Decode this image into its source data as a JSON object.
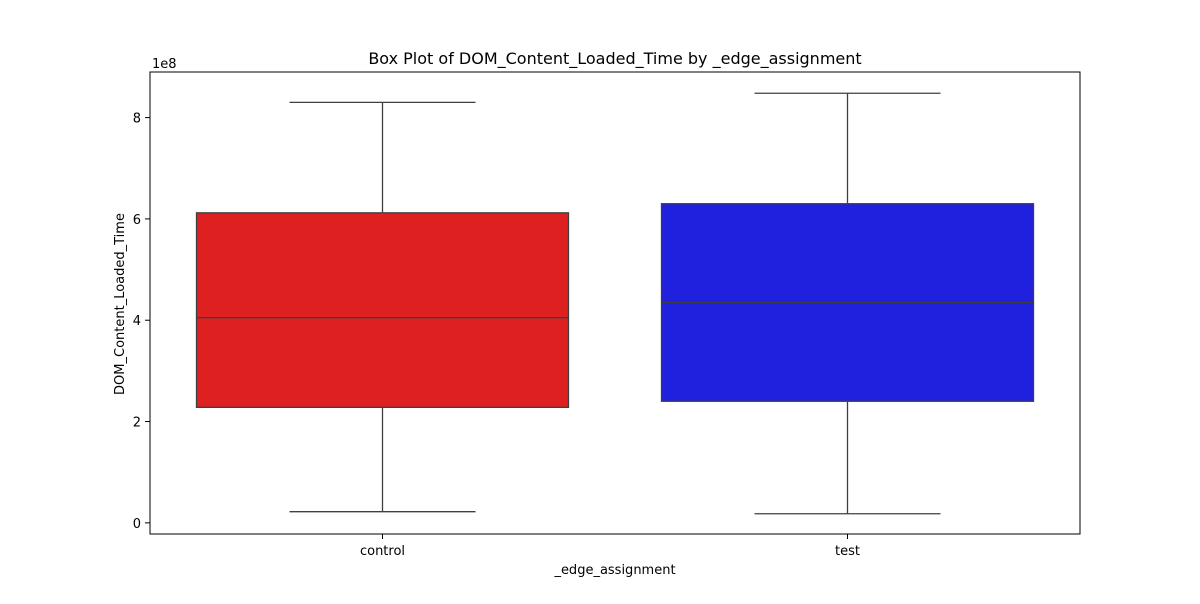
{
  "chart_data": {
    "type": "box",
    "title": "Box Plot of DOM_Content_Loaded_Time by _edge_assignment",
    "xlabel": "_edge_assignment",
    "ylabel": "DOM_Content_Loaded_Time",
    "y_offset_label": "1e8",
    "ylim": [
      -0.22,
      8.9
    ],
    "y_ticks": [
      {
        "value": 0,
        "label": "0"
      },
      {
        "value": 2,
        "label": "2"
      },
      {
        "value": 4,
        "label": "4"
      },
      {
        "value": 6,
        "label": "6"
      },
      {
        "value": 8,
        "label": "8"
      }
    ],
    "categories": [
      "control",
      "test"
    ],
    "boxes": [
      {
        "name": "control",
        "color": "#df2020",
        "whisker_low": 0.22,
        "q1": 2.28,
        "median": 4.05,
        "q3": 6.12,
        "whisker_high": 8.3
      },
      {
        "name": "test",
        "color": "#2020df",
        "whisker_low": 0.18,
        "q1": 2.4,
        "median": 4.35,
        "q3": 6.3,
        "whisker_high": 8.48
      }
    ],
    "grid": false,
    "legend": "none"
  }
}
